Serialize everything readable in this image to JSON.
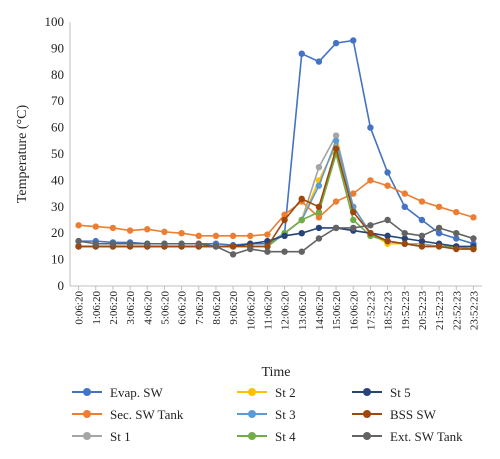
{
  "chart_data": {
    "type": "line",
    "xlabel": "Time",
    "ylabel": "Temperature (°C)",
    "ylim": [
      0,
      100
    ],
    "y_ticks": [
      "0",
      "10",
      "20",
      "30",
      "40",
      "50",
      "60",
      "70",
      "80",
      "90",
      "100"
    ],
    "x_tick_labels": [
      "0:06:20",
      "1:06:20",
      "2:06:20",
      "3:06:20",
      "4:06:20",
      "5:06:20",
      "6:06:20",
      "7:06:20",
      "8:06:20",
      "9:06:20",
      "10:06:20",
      "11:06:20",
      "12:06:20",
      "13:06:20",
      "14:06:20",
      "15:06:20",
      "16:06:20",
      "17:52:23",
      "18:52:23",
      "19:52:23",
      "20:52:23",
      "21:52:23",
      "22:52:23",
      "23:52:23"
    ],
    "legend_position": "bottom",
    "grid": "none",
    "series": [
      {
        "name": "Evap. SW",
        "color": "#4472c4",
        "values": [
          17,
          17,
          16.5,
          16.5,
          16,
          16,
          16,
          16,
          16,
          15.5,
          16,
          16,
          20,
          88,
          85,
          92,
          93,
          60,
          43,
          30,
          25,
          20,
          18,
          16
        ]
      },
      {
        "name": "Sec. SW Tank",
        "color": "#ed7d31",
        "values": [
          23,
          22.5,
          22,
          21,
          21.5,
          20.5,
          20,
          19,
          19,
          19,
          19,
          19.5,
          27,
          32,
          26,
          32,
          35,
          40,
          38,
          35,
          32,
          30,
          28,
          26
        ]
      },
      {
        "name": "St 1",
        "color": "#a5a5a5",
        "values": [
          15,
          15,
          15,
          15,
          15,
          15,
          15,
          15,
          15,
          15,
          15,
          15,
          20,
          25,
          45,
          57,
          30,
          20,
          17,
          16,
          16,
          15,
          15,
          14
        ]
      },
      {
        "name": "St 2",
        "color": "#ffc000",
        "values": [
          15,
          15,
          15,
          15,
          15,
          15,
          15,
          15,
          15,
          15,
          15,
          15,
          20,
          25,
          40,
          53,
          30,
          20,
          16,
          16,
          15,
          15,
          15,
          14
        ]
      },
      {
        "name": "St 3",
        "color": "#5b9bd5",
        "values": [
          15,
          15,
          15,
          15,
          15,
          15,
          15,
          15,
          15,
          15,
          15,
          15,
          20,
          25,
          38,
          55,
          30,
          20,
          17,
          16,
          15,
          15,
          15,
          14
        ]
      },
      {
        "name": "St 4",
        "color": "#70ad47",
        "values": [
          15,
          15,
          15,
          15,
          15,
          15,
          15,
          15,
          15,
          15,
          15,
          15,
          20,
          25,
          28,
          50,
          25,
          19,
          17,
          16,
          15,
          15,
          15,
          14
        ]
      },
      {
        "name": "St 5",
        "color": "#264478",
        "values": [
          15,
          15,
          15,
          15,
          15,
          15,
          15,
          15,
          15,
          15,
          16,
          17,
          19,
          20,
          22,
          22,
          21,
          20,
          19,
          18,
          17,
          16,
          15,
          15
        ]
      },
      {
        "name": "BSS SW",
        "color": "#9e480e",
        "values": [
          15,
          15,
          15,
          15,
          15,
          15,
          15,
          15,
          15,
          15,
          15,
          15,
          25,
          33,
          30,
          52,
          28,
          20,
          17,
          16,
          15,
          15,
          14,
          14
        ]
      },
      {
        "name": "Ext. SW Tank",
        "color": "#636363",
        "values": [
          17,
          16,
          16,
          16,
          16,
          16,
          16,
          16,
          15,
          12,
          14,
          13,
          13,
          13,
          18,
          22,
          22,
          23,
          25,
          20,
          19,
          22,
          20,
          18
        ]
      }
    ]
  }
}
